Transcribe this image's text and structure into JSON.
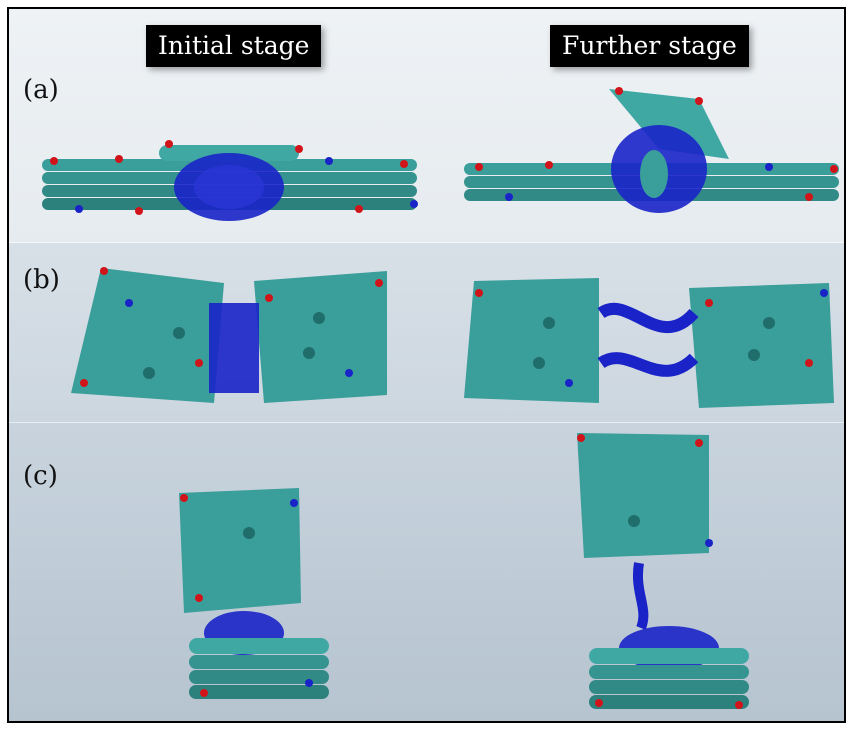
{
  "header": {
    "initial_label": "Initial stage",
    "further_label": "Further stage"
  },
  "panels": [
    {
      "id": "a",
      "label": "(a)"
    },
    {
      "id": "b",
      "label": "(b)"
    },
    {
      "id": "c",
      "label": "(c)"
    }
  ],
  "colors": {
    "carbon": "#3a9e9a",
    "carbon_dark": "#1f6e6b",
    "oxygen": "#d1141a",
    "nitrogen": "#1a23c8",
    "panel_a_bg": "#e9eef2",
    "panel_b_bg": "#d2dbe3",
    "panel_c_bg": "#bfccd7"
  }
}
